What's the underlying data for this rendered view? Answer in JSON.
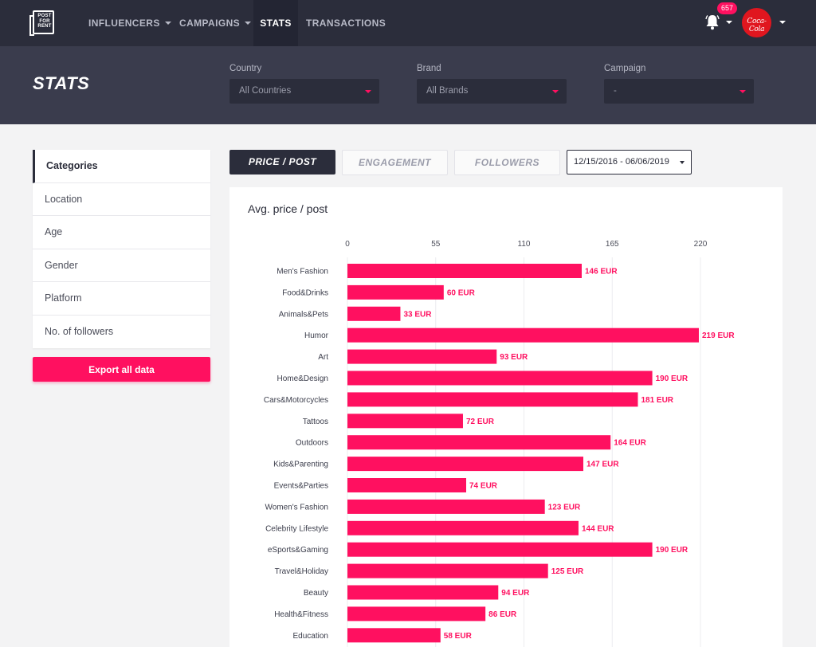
{
  "nav": {
    "logo_text": "POST FOR RENT",
    "items": [
      {
        "label": "INFLUENCERS"
      },
      {
        "label": "CAMPAIGNS"
      },
      {
        "label": "STATS"
      },
      {
        "label": "TRANSACTIONS"
      }
    ],
    "notification_count": "657",
    "avatar_text": "Coca-Cola"
  },
  "header": {
    "title": "STATS",
    "filters": [
      {
        "label": "Country",
        "value": "All Countries"
      },
      {
        "label": "Brand",
        "value": "All Brands"
      },
      {
        "label": "Campaign",
        "value": "-"
      }
    ]
  },
  "sidebar": {
    "items": [
      {
        "label": "Categories"
      },
      {
        "label": "Location"
      },
      {
        "label": "Age"
      },
      {
        "label": "Gender"
      },
      {
        "label": "Platform"
      },
      {
        "label": "No. of followers"
      }
    ],
    "export_label": "Export all data"
  },
  "tabs": [
    {
      "label": "PRICE / POST"
    },
    {
      "label": "ENGAGEMENT"
    },
    {
      "label": "FOLLOWERS"
    }
  ],
  "date_range": "12/15/2016 - 06/06/2019",
  "colors": {
    "accent": "#ff1060",
    "nav": "#2b2d3b",
    "header": "#3a3c4d"
  },
  "chart_data": {
    "type": "bar",
    "orientation": "horizontal",
    "title": "Avg. price / post",
    "xlim": [
      0,
      220
    ],
    "ticks": [
      0,
      55,
      110,
      165,
      220
    ],
    "unit": "EUR",
    "categories": [
      "Men's Fashion",
      "Food&Drinks",
      "Animals&Pets",
      "Humor",
      "Art",
      "Home&Design",
      "Cars&Motorcycles",
      "Tattoos",
      "Outdoors",
      "Kids&Parenting",
      "Events&Parties",
      "Women's Fashion",
      "Celebrity Lifestyle",
      "eSports&Gaming",
      "Travel&Holiday",
      "Beauty",
      "Health&Fitness",
      "Education"
    ],
    "values": [
      146,
      60,
      33,
      219,
      93,
      190,
      181,
      72,
      164,
      147,
      74,
      123,
      144,
      190,
      125,
      94,
      86,
      58
    ],
    "labels": [
      "146 EUR",
      "60 EUR",
      "33 EUR",
      "219 EUR",
      "93 EUR",
      "190 EUR",
      "181 EUR",
      "72 EUR",
      "164 EUR",
      "147 EUR",
      "74 EUR",
      "123 EUR",
      "144 EUR",
      "190 EUR",
      "125 EUR",
      "94 EUR",
      "86 EUR",
      "58 EUR"
    ]
  }
}
